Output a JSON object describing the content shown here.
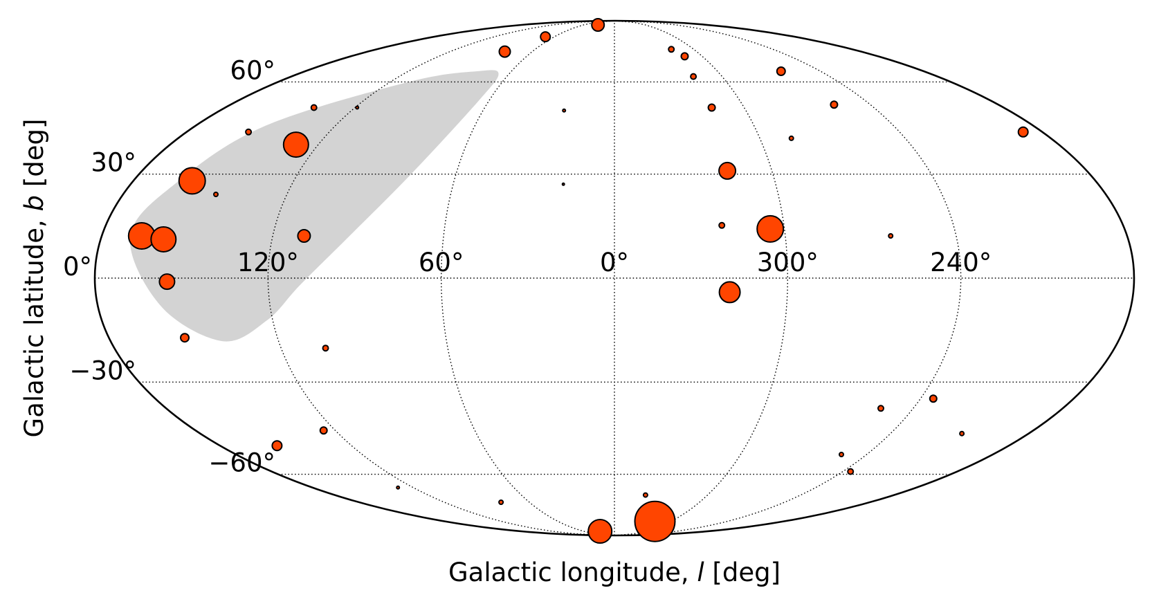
{
  "chart_data": {
    "type": "scatter",
    "projection": "mollweide",
    "xlabel_parts": [
      "Galactic longitude, ",
      "l",
      " [deg]"
    ],
    "ylabel_parts": [
      "Galactic latitude, ",
      "b",
      " [deg]"
    ],
    "x_ticks": [
      "120°",
      "60°",
      "0°",
      "300°",
      "240°"
    ],
    "x_tick_values": [
      120,
      60,
      0,
      -60,
      -120
    ],
    "y_ticks": [
      "60°",
      "30°",
      "0°",
      "−30°",
      "−60°"
    ],
    "y_tick_values": [
      60,
      30,
      0,
      -30,
      -60
    ],
    "xlim": [
      180,
      -180
    ],
    "ylim": [
      -90,
      90
    ],
    "grid": true,
    "colors": {
      "marker_fill": "#ff4500",
      "marker_edge": "#000000",
      "region_fill": "#d3d3d3",
      "grid": "#000000"
    },
    "region": {
      "name": "shaded region",
      "points": [
        [
          170,
          12
        ],
        [
          163,
          28
        ],
        [
          150,
          45
        ],
        [
          110,
          60
        ],
        [
          80,
          64
        ],
        [
          66,
          63
        ],
        [
          65,
          53
        ],
        [
          77,
          30
        ],
        [
          93,
          12
        ],
        [
          109,
          -2
        ],
        [
          122,
          -12
        ],
        [
          140,
          -18
        ],
        [
          158,
          -8
        ]
      ]
    },
    "points": [
      {
        "l": 32,
        "b": 86,
        "size": 9
      },
      {
        "l": 69,
        "b": 79,
        "size": 7
      },
      {
        "l": 80,
        "b": 72,
        "size": 8
      },
      {
        "l": 139,
        "b": 51,
        "size": 4
      },
      {
        "l": 119,
        "b": 51,
        "size": 2
      },
      {
        "l": 154,
        "b": 43,
        "size": 4
      },
      {
        "l": 129,
        "b": 39,
        "size": 18
      },
      {
        "l": 158,
        "b": 28,
        "size": 19
      },
      {
        "l": 146,
        "b": 24,
        "size": 3
      },
      {
        "l": 166,
        "b": 12,
        "size": 19
      },
      {
        "l": 158,
        "b": 11,
        "size": 18
      },
      {
        "l": 109,
        "b": 12,
        "size": 9
      },
      {
        "l": 155,
        "b": -1,
        "size": 11
      },
      {
        "l": 153,
        "b": -17,
        "size": 6
      },
      {
        "l": 104,
        "b": -20,
        "size": 4
      },
      {
        "l": 23,
        "b": 50,
        "size": 2
      },
      {
        "l": 19,
        "b": 27,
        "size": 1.5
      },
      {
        "l": -43,
        "b": 73,
        "size": 4
      },
      {
        "l": -48,
        "b": 70,
        "size": 5
      },
      {
        "l": -44,
        "b": 62,
        "size": 4
      },
      {
        "l": -45,
        "b": 51,
        "size": 5
      },
      {
        "l": -97,
        "b": 64,
        "size": 6
      },
      {
        "l": -103,
        "b": 52,
        "size": 5
      },
      {
        "l": -73,
        "b": 41,
        "size": 3
      },
      {
        "l": -172,
        "b": 43,
        "size": 7
      },
      {
        "l": -43,
        "b": 31,
        "size": 12
      },
      {
        "l": -38,
        "b": 15,
        "size": 4
      },
      {
        "l": -55,
        "b": 14,
        "size": 19
      },
      {
        "l": -97,
        "b": 12,
        "size": 3
      },
      {
        "l": -40,
        "b": -4,
        "size": 15
      },
      {
        "l": 154,
        "b": -50,
        "size": 7
      },
      {
        "l": 125,
        "b": -45,
        "size": 5
      },
      {
        "l": 129,
        "b": -65,
        "size": 2
      },
      {
        "l": 80,
        "b": -71,
        "size": 3
      },
      {
        "l": -107,
        "b": -38,
        "size": 4
      },
      {
        "l": -125,
        "b": -35,
        "size": 5
      },
      {
        "l": -151,
        "b": -46,
        "size": 3
      },
      {
        "l": -108,
        "b": -53,
        "size": 3
      },
      {
        "l": -124,
        "b": -59,
        "size": 4
      },
      {
        "l": -20,
        "b": -68,
        "size": 3
      },
      {
        "l": -43,
        "b": -80,
        "size": 29
      },
      {
        "l": 28,
        "b": -86,
        "size": 17
      }
    ]
  }
}
